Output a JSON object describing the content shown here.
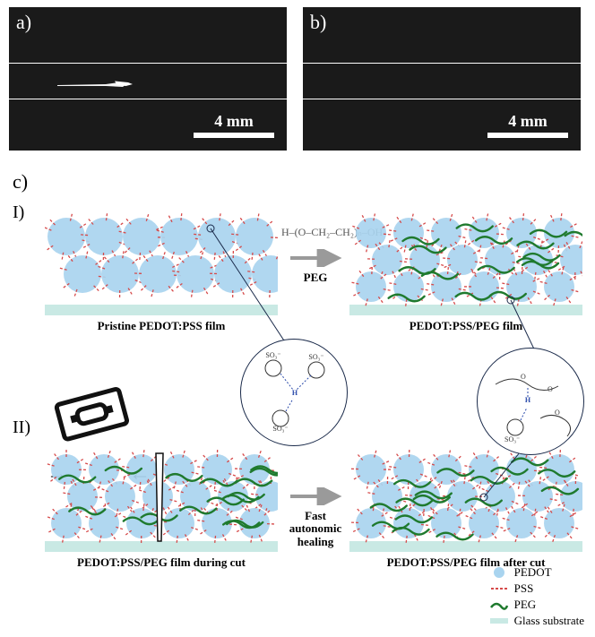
{
  "panels": {
    "a": {
      "label": "a)",
      "scale": "4 mm",
      "bg": "#222222",
      "line_color": "#ffffff",
      "guide_y": [
        62,
        102
      ],
      "scratch": {
        "present": true,
        "color": "#f5f5f5"
      }
    },
    "b": {
      "label": "b)",
      "scale": "4 mm",
      "bg": "#1e1e1e",
      "line_color": "#ffffff",
      "guide_y": [
        62,
        102
      ],
      "scratch": {
        "present": false
      }
    },
    "c": {
      "label": "c)"
    }
  },
  "scheme": {
    "I": {
      "roman": "I)",
      "left_caption": "Pristine PEDOT:PSS film",
      "right_caption": "PEDOT:PSS/PEG film",
      "arrow_label": "PEG",
      "peg_formula": "H–(O–CH₂–CH₂)ₙ–OH"
    },
    "II": {
      "roman": "II)",
      "left_caption": "PEDOT:PSS/PEG film during cut",
      "right_caption": "PEDOT:PSS/PEG film after cut",
      "arrow_label_line1": "Fast autonomic",
      "arrow_label_line2": "healing"
    }
  },
  "legend": {
    "pedot": {
      "label": "PEDOT",
      "color": "#a9d4ef"
    },
    "pss": {
      "label": "PSS",
      "color": "#d64a4a"
    },
    "peg": {
      "label": "PEG",
      "color": "#1f7a2e"
    },
    "glass": {
      "label": "Glass substrate",
      "color": "#c9e9e4"
    }
  },
  "style": {
    "pedot_blob": "#a9d4ef",
    "pss_dash": "#d64a4a",
    "peg_line": "#1f7a2e",
    "glass": "#c9e9e4",
    "razor": "#111111",
    "text": "#111111",
    "arrow": "#9a9a9a",
    "circle": "#1a2a4a"
  }
}
